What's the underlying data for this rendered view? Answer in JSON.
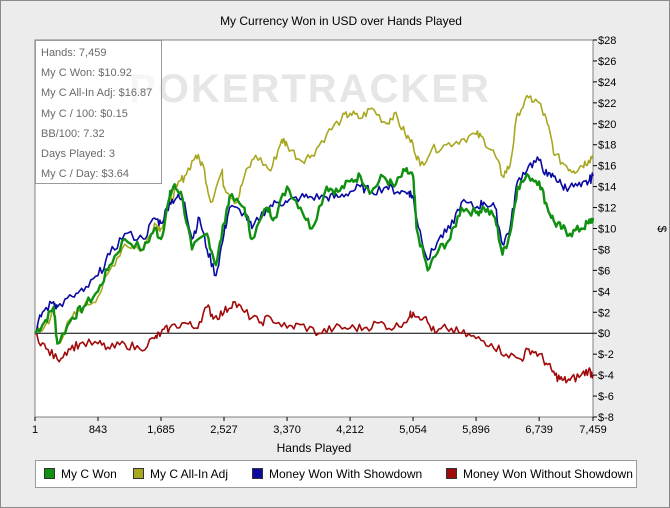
{
  "chart_data": {
    "type": "line",
    "title": "My Currency Won in USD over Hands Played",
    "xlabel": "Hands Played",
    "ylabel": "$",
    "xlim": [
      1,
      7459
    ],
    "ylim": [
      -8,
      28
    ],
    "x_ticks": [
      "1",
      "843",
      "1,685",
      "2,527",
      "3,370",
      "4,212",
      "5,054",
      "5,896",
      "6,739",
      "7,459"
    ],
    "y_ticks": [
      "$28",
      "$26",
      "$24",
      "$22",
      "$20",
      "$18",
      "$16",
      "$14",
      "$12",
      "$10",
      "$8",
      "$6",
      "$4",
      "$2",
      "$0",
      "$-2",
      "$-4",
      "$-6",
      "$-8"
    ],
    "watermark": "POKERTRACKER",
    "series": [
      {
        "name": "My C Won",
        "color": "#109010",
        "x": [
          1,
          120,
          250,
          300,
          500,
          650,
          843,
          1000,
          1200,
          1450,
          1600,
          1685,
          1800,
          1850,
          1950,
          2100,
          2300,
          2420,
          2527,
          2600,
          2800,
          2900,
          3100,
          3200,
          3370,
          3550,
          3700,
          3900,
          4050,
          4212,
          4350,
          4500,
          4650,
          4800,
          4950,
          5054,
          5100,
          5250,
          5400,
          5550,
          5700,
          5896,
          6000,
          6150,
          6250,
          6350,
          6450,
          6600,
          6739,
          6850,
          6950,
          7050,
          7150,
          7300,
          7400,
          7459
        ],
        "values": [
          0,
          1,
          2.5,
          -1,
          1.5,
          2.5,
          4,
          6.5,
          9,
          8,
          10,
          9,
          13,
          14,
          13.5,
          8,
          9.5,
          6.5,
          10.5,
          13,
          12,
          9,
          12,
          11,
          14,
          12,
          10,
          14,
          13.5,
          14.5,
          15,
          13.5,
          15,
          14,
          15.5,
          15,
          10,
          6,
          8,
          9,
          12,
          11.5,
          12,
          11,
          7.5,
          9.5,
          14,
          15,
          14.5,
          12,
          10.5,
          10,
          9.5,
          10,
          10.5,
          11
        ]
      },
      {
        "name": "My C All-In Adj",
        "color": "#a8a820",
        "x": [
          1,
          120,
          250,
          300,
          500,
          650,
          843,
          1000,
          1200,
          1450,
          1600,
          1685,
          1800,
          1900,
          2000,
          2150,
          2250,
          2350,
          2500,
          2527,
          2700,
          2800,
          2950,
          3150,
          3300,
          3370,
          3550,
          3700,
          3900,
          4100,
          4212,
          4350,
          4500,
          4700,
          4800,
          4950,
          5054,
          5150,
          5300,
          5500,
          5700,
          5896,
          6000,
          6150,
          6250,
          6350,
          6450,
          6600,
          6739,
          6850,
          6950,
          7100,
          7200,
          7300,
          7400,
          7459
        ],
        "values": [
          0,
          0.5,
          2,
          -1,
          1.5,
          2.5,
          3.5,
          6,
          8.5,
          8,
          10.5,
          10,
          12.5,
          14,
          15,
          17,
          16,
          12.5,
          15.5,
          14,
          12.5,
          15,
          17,
          15.5,
          18.5,
          18,
          16.5,
          17,
          19,
          20.5,
          21,
          20.5,
          21.5,
          20,
          21,
          19,
          18,
          16,
          17.5,
          18,
          18.5,
          19,
          18.5,
          17,
          15,
          16,
          21,
          22.5,
          22,
          20,
          17,
          16,
          15.5,
          16,
          16.5,
          17
        ]
      },
      {
        "name": "Money Won With Showdown",
        "color": "#0a0aa0",
        "x": [
          1,
          100,
          250,
          300,
          500,
          650,
          843,
          1000,
          1200,
          1450,
          1600,
          1685,
          1800,
          1900,
          2000,
          2100,
          2200,
          2300,
          2420,
          2527,
          2600,
          2800,
          2900,
          3100,
          3250,
          3370,
          3550,
          3700,
          3900,
          4050,
          4212,
          4350,
          4500,
          4700,
          4850,
          5000,
          5054,
          5100,
          5250,
          5400,
          5550,
          5700,
          5896,
          6000,
          6150,
          6250,
          6350,
          6450,
          6600,
          6739,
          6850,
          6950,
          7050,
          7150,
          7300,
          7400,
          7459
        ],
        "values": [
          0,
          2,
          3,
          2.5,
          3.5,
          4,
          5.5,
          7.5,
          9.5,
          9,
          11,
          10.5,
          12.5,
          13,
          12.5,
          9,
          11,
          8,
          5.5,
          9.5,
          12,
          11.5,
          10,
          12,
          12.5,
          12.5,
          13,
          13,
          13,
          13,
          13.5,
          14,
          13.5,
          14,
          13.5,
          13.5,
          13,
          11,
          7,
          9,
          10,
          12.5,
          12,
          12.5,
          12,
          8.5,
          10,
          14.5,
          16,
          16.5,
          15,
          15,
          14,
          14,
          14,
          14.5,
          15
        ]
      },
      {
        "name": "Money Won Without Showdown",
        "color": "#a00a0a",
        "x": [
          1,
          150,
          300,
          450,
          600,
          843,
          1000,
          1200,
          1400,
          1600,
          1685,
          1800,
          2000,
          2150,
          2300,
          2400,
          2527,
          2650,
          2800,
          3000,
          3150,
          3370,
          3550,
          3800,
          4000,
          4212,
          4400,
          4600,
          4800,
          5000,
          5054,
          5200,
          5350,
          5500,
          5700,
          5896,
          6100,
          6300,
          6500,
          6600,
          6739,
          6850,
          6950,
          7050,
          7150,
          7300,
          7400,
          7459
        ],
        "values": [
          0,
          -1.5,
          -2.5,
          -1.5,
          -1,
          -1,
          -1.5,
          -1,
          -1.5,
          -0.5,
          0,
          0.5,
          1,
          0.5,
          2.5,
          1.5,
          2,
          3,
          2,
          1,
          1.5,
          0.5,
          0.8,
          0,
          0.5,
          0.5,
          0.5,
          1,
          0.5,
          1.5,
          2,
          1.5,
          0,
          0.5,
          0,
          -0.5,
          -1,
          -2,
          -2.5,
          -1.5,
          -2,
          -3,
          -4,
          -4.5,
          -4.5,
          -4,
          -3.5,
          -4
        ]
      }
    ],
    "legend_position": "bottom"
  },
  "stats": {
    "hands": "Hands: 7,459",
    "won": "My C Won: $10.92",
    "allin": "My C All-In Adj: $16.87",
    "per100": "My C / 100: $0.15",
    "bb100": "BB/100: 7.32",
    "days": "Days Played: 3",
    "perday": "My C / Day: $3.64"
  },
  "legend": [
    {
      "label": "My C Won",
      "color": "#109010"
    },
    {
      "label": "My C All-In Adj",
      "color": "#a8a820"
    },
    {
      "label": "Money Won With Showdown",
      "color": "#0a0aa0"
    },
    {
      "label": "Money Won Without Showdown",
      "color": "#a00a0a"
    }
  ]
}
